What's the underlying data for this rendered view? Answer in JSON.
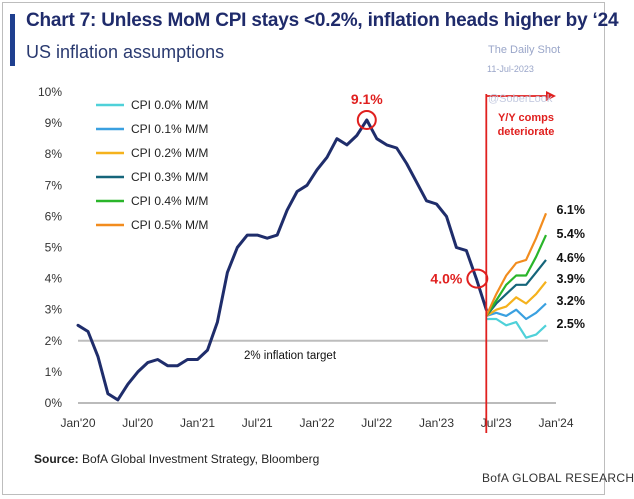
{
  "header": {
    "title": "Chart 7: Unless MoM CPI stays <0.2%, inflation heads higher by ‘24",
    "subtitle": "US inflation assumptions"
  },
  "watermark": {
    "publisher": "The Daily Shot",
    "date": "11-Jul-2023",
    "handle": "@SoberLook"
  },
  "footer": {
    "source_label": "Source:",
    "source_text": "BofA Global Investment Strategy, Bloomberg",
    "brand": "BofA GLOBAL RESEARCH"
  },
  "colors": {
    "actual": "#1f2d6b",
    "target": "#bdbdbd",
    "vline": "#e0201f",
    "circle": "#e0201f",
    "scenarios": [
      "#4fd1d9",
      "#3aa0e0",
      "#f5b21d",
      "#15657a",
      "#2ab52a",
      "#f28c1e"
    ]
  },
  "chart_data": {
    "type": "line",
    "x_ticks": [
      "Jan'20",
      "Jul'20",
      "Jan'21",
      "Jul'21",
      "Jan'22",
      "Jul'22",
      "Jan'23",
      "Jul'23",
      "Jan'24"
    ],
    "y_ticks": [
      "0%",
      "1%",
      "2%",
      "3%",
      "4%",
      "5%",
      "6%",
      "7%",
      "8%",
      "9%",
      "10%"
    ],
    "ylim": [
      0,
      10
    ],
    "xlim": [
      "2020-01",
      "2024-01"
    ],
    "actual": {
      "x": [
        "2020-01",
        "2020-02",
        "2020-03",
        "2020-04",
        "2020-05",
        "2020-06",
        "2020-07",
        "2020-08",
        "2020-09",
        "2020-10",
        "2020-11",
        "2020-12",
        "2021-01",
        "2021-02",
        "2021-03",
        "2021-04",
        "2021-05",
        "2021-06",
        "2021-07",
        "2021-08",
        "2021-09",
        "2021-10",
        "2021-11",
        "2021-12",
        "2022-01",
        "2022-02",
        "2022-03",
        "2022-04",
        "2022-05",
        "2022-06",
        "2022-07",
        "2022-08",
        "2022-09",
        "2022-10",
        "2022-11",
        "2022-12",
        "2023-01",
        "2023-02",
        "2023-03",
        "2023-04",
        "2023-05",
        "2023-06"
      ],
      "values": [
        2.5,
        2.3,
        1.5,
        0.3,
        0.1,
        0.6,
        1.0,
        1.3,
        1.4,
        1.2,
        1.2,
        1.4,
        1.4,
        1.7,
        2.6,
        4.2,
        5.0,
        5.4,
        5.4,
        5.3,
        5.4,
        6.2,
        6.8,
        7.0,
        7.5,
        7.9,
        8.5,
        8.3,
        8.6,
        9.1,
        8.5,
        8.3,
        8.2,
        7.7,
        7.1,
        6.5,
        6.4,
        6.0,
        5.0,
        4.9,
        4.0,
        3.0
      ]
    },
    "scenarios": {
      "x": [
        "2023-06",
        "2023-07",
        "2023-08",
        "2023-09",
        "2023-10",
        "2023-11",
        "2023-12"
      ],
      "series": [
        {
          "name": "CPI 0.0% M/M",
          "values": [
            2.7,
            2.7,
            2.5,
            2.6,
            2.1,
            2.2,
            2.5
          ],
          "end_label": "2.5%"
        },
        {
          "name": "CPI 0.1% M/M",
          "values": [
            2.8,
            2.9,
            2.8,
            3.0,
            2.7,
            2.9,
            3.2
          ],
          "end_label": "3.2%"
        },
        {
          "name": "CPI 0.2% M/M",
          "values": [
            2.8,
            3.0,
            3.1,
            3.4,
            3.2,
            3.5,
            3.9
          ],
          "end_label": "3.9%"
        },
        {
          "name": "CPI 0.3% M/M",
          "values": [
            2.8,
            3.2,
            3.5,
            3.8,
            3.8,
            4.2,
            4.6
          ],
          "end_label": "4.6%"
        },
        {
          "name": "CPI 0.4% M/M",
          "values": [
            2.8,
            3.3,
            3.8,
            4.1,
            4.1,
            4.7,
            5.4
          ],
          "end_label": "5.4%"
        },
        {
          "name": "CPI 0.5% M/M",
          "values": [
            2.8,
            3.5,
            4.1,
            4.5,
            4.6,
            5.3,
            6.1
          ],
          "end_label": "6.1%"
        }
      ]
    },
    "target": {
      "value": 2.0,
      "label": "2% inflation target"
    },
    "annotations": {
      "peak_label": "9.1%",
      "peak": {
        "x": "2022-06",
        "y": 9.1
      },
      "latest_label": "4.0%",
      "latest": {
        "x": "2023-05",
        "y": 4.0
      },
      "vline_x": "2023-06",
      "vline_label_1": "Y/Y comps",
      "vline_label_2": "deteriorate"
    },
    "grid": false,
    "legend": "top-left"
  }
}
